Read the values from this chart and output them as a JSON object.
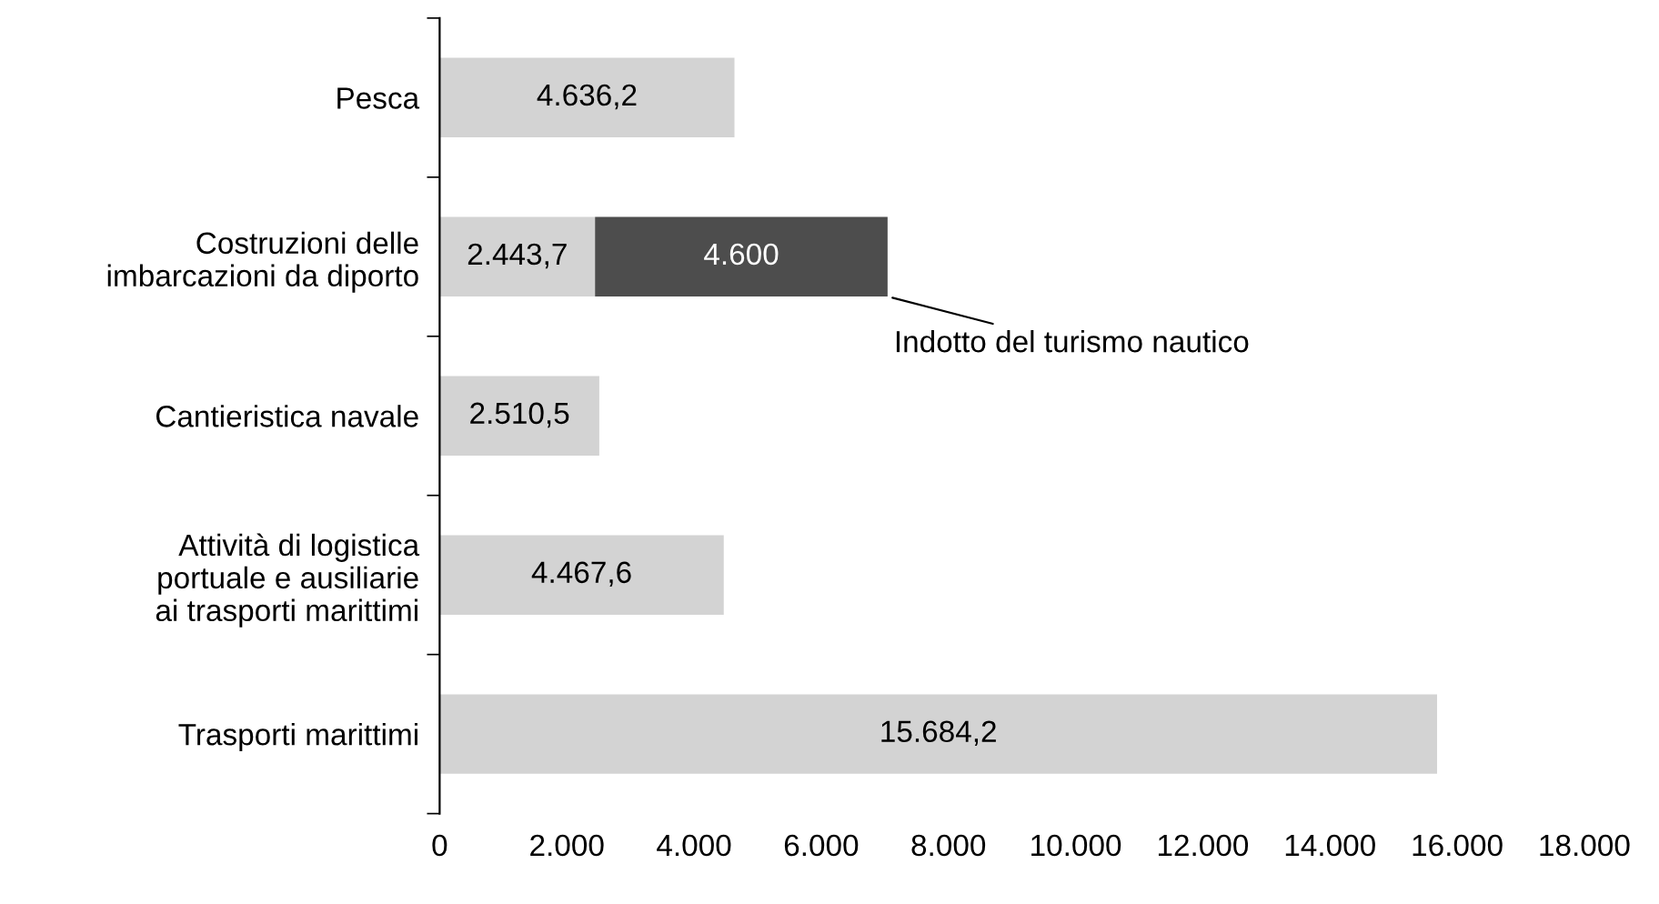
{
  "chart_data": {
    "type": "bar",
    "orientation": "horizontal",
    "stacked": true,
    "categories": [
      "Pesca",
      "Costruzioni delle\nimbarcazioni da diporto",
      "Cantieristica navale",
      "Attività di logistica\nportuale e ausiliarie\nai trasporti marittimi",
      "Trasporti marittimi"
    ],
    "series": [
      {
        "color": "#d3d3d3",
        "values": [
          4636.2,
          2443.7,
          2510.5,
          4467.6,
          15684.2
        ],
        "value_labels": [
          "4.636,2",
          "2.443,7",
          "2.510,5",
          "4.467,6",
          "15.684,2"
        ]
      },
      {
        "name": "Indotto del turismo nautico",
        "color": "#4d4d4d",
        "values": [
          null,
          4600,
          null,
          null,
          null
        ],
        "value_labels": [
          null,
          "4.600",
          null,
          null,
          null
        ]
      }
    ],
    "xlim": [
      0,
      18000
    ],
    "xticks": [
      0,
      {
        "value": 2000,
        "label": "2.000"
      },
      {
        "value": 4000,
        "label": "4.000"
      },
      {
        "value": 6000,
        "label": "6.000"
      },
      {
        "value": 8000,
        "label": "8.000"
      },
      {
        "value": 10000,
        "label": "10.000"
      },
      {
        "value": 12000,
        "label": "12.000"
      },
      {
        "value": 14000,
        "label": "14.000"
      },
      {
        "value": 16000,
        "label": "16.000"
      },
      {
        "value": 18000,
        "label": "18.000"
      }
    ],
    "grid": false,
    "legend": false
  }
}
